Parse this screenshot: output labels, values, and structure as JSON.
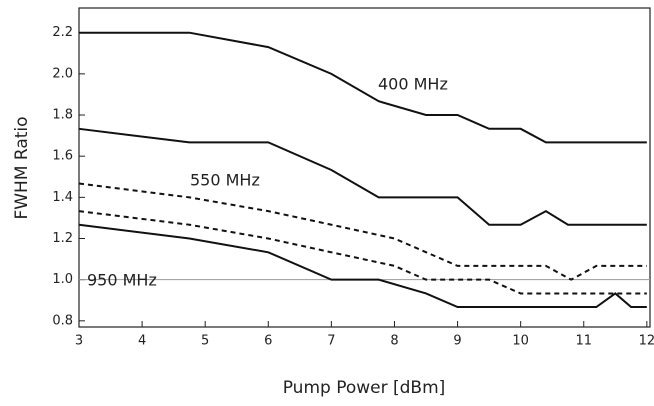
{
  "chart_data": {
    "type": "line",
    "x_label": "Pump Power [dBm]",
    "y_label": "FWHM Ratio",
    "xlim": [
      3,
      12.05
    ],
    "ylim": [
      0.77,
      2.32
    ],
    "xticks": [
      3,
      4,
      5,
      6,
      7,
      8,
      9,
      10,
      11,
      12
    ],
    "yticks": [
      0.8,
      {
        "value": 1,
        "label": "1.0"
      },
      1.2,
      1.4,
      1.6,
      1.8,
      {
        "value": 2,
        "label": "2.0"
      },
      2.2
    ],
    "reference_line": 1,
    "annotations": [
      "400 MHz",
      "550 MHz",
      "950 MHz"
    ],
    "series": [
      {
        "color": "#111",
        "dash": false,
        "x": [
          3,
          4.75,
          6,
          7,
          7.75,
          8.5,
          9,
          9.5,
          10,
          10.4,
          12
        ],
        "values": [
          2.2,
          2.2,
          2.13,
          2.0,
          1.867,
          1.8,
          1.8,
          1.733,
          1.733,
          1.667,
          1.667
        ]
      },
      {
        "color": "#111",
        "dash": false,
        "x": [
          3,
          4.75,
          6,
          7,
          7.75,
          9,
          9.5,
          10,
          10.4,
          10.75,
          12
        ],
        "values": [
          1.733,
          1.667,
          1.667,
          1.533,
          1.4,
          1.4,
          1.267,
          1.267,
          1.333,
          1.267,
          1.267
        ]
      },
      {
        "color": "#111",
        "dash": true,
        "x": [
          3,
          4.75,
          6,
          7,
          8,
          9,
          10.4,
          10.8,
          11.2,
          12
        ],
        "values": [
          1.467,
          1.4,
          1.333,
          1.267,
          1.2,
          1.067,
          1.067,
          1.0,
          1.067,
          1.067
        ]
      },
      {
        "color": "#111",
        "dash": true,
        "x": [
          3,
          4.75,
          6,
          7,
          8,
          8.5,
          9.5,
          10,
          12
        ],
        "values": [
          1.333,
          1.267,
          1.2,
          1.133,
          1.067,
          1.0,
          1.0,
          0.933,
          0.933
        ]
      },
      {
        "color": "#111",
        "dash": false,
        "x": [
          3,
          4.75,
          6,
          7,
          7.75,
          8.5,
          9,
          11.2,
          11.5,
          11.75,
          12
        ],
        "values": [
          1.267,
          1.2,
          1.133,
          1.0,
          1.0,
          0.933,
          0.867,
          0.867,
          0.933,
          0.867,
          0.867
        ]
      }
    ]
  }
}
